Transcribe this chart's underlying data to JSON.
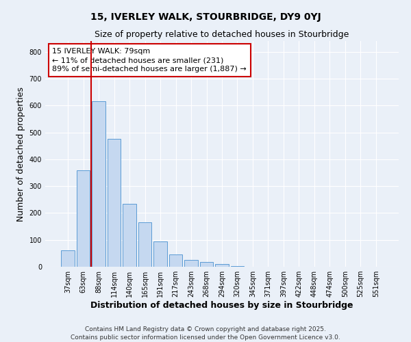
{
  "title1": "15, IVERLEY WALK, STOURBRIDGE, DY9 0YJ",
  "title2": "Size of property relative to detached houses in Stourbridge",
  "xlabel": "Distribution of detached houses by size in Stourbridge",
  "ylabel": "Number of detached properties",
  "categories": [
    "37sqm",
    "63sqm",
    "88sqm",
    "114sqm",
    "140sqm",
    "165sqm",
    "191sqm",
    "217sqm",
    "243sqm",
    "268sqm",
    "294sqm",
    "320sqm",
    "345sqm",
    "371sqm",
    "397sqm",
    "422sqm",
    "448sqm",
    "474sqm",
    "500sqm",
    "525sqm",
    "551sqm"
  ],
  "values": [
    60,
    360,
    615,
    475,
    235,
    165,
    95,
    45,
    25,
    18,
    10,
    2,
    1,
    1,
    1,
    1,
    1,
    0,
    0,
    0,
    0
  ],
  "bar_color": "#c5d8f0",
  "bar_edge_color": "#5b9bd5",
  "vline_x": 1.5,
  "vline_color": "#cc0000",
  "annotation_text": "15 IVERLEY WALK: 79sqm\n← 11% of detached houses are smaller (231)\n89% of semi-detached houses are larger (1,887) →",
  "annotation_box_color": "#ffffff",
  "annotation_box_edge": "#cc0000",
  "background_color": "#eaf0f8",
  "plot_bg_color": "#eaf0f8",
  "grid_color": "#ffffff",
  "ylim": [
    0,
    840
  ],
  "yticks": [
    0,
    100,
    200,
    300,
    400,
    500,
    600,
    700,
    800
  ],
  "footer_text": "Contains HM Land Registry data © Crown copyright and database right 2025.\nContains public sector information licensed under the Open Government Licence v3.0.",
  "title_fontsize": 10,
  "subtitle_fontsize": 9,
  "axis_label_fontsize": 9,
  "tick_fontsize": 7,
  "annotation_fontsize": 8,
  "footer_fontsize": 6.5
}
